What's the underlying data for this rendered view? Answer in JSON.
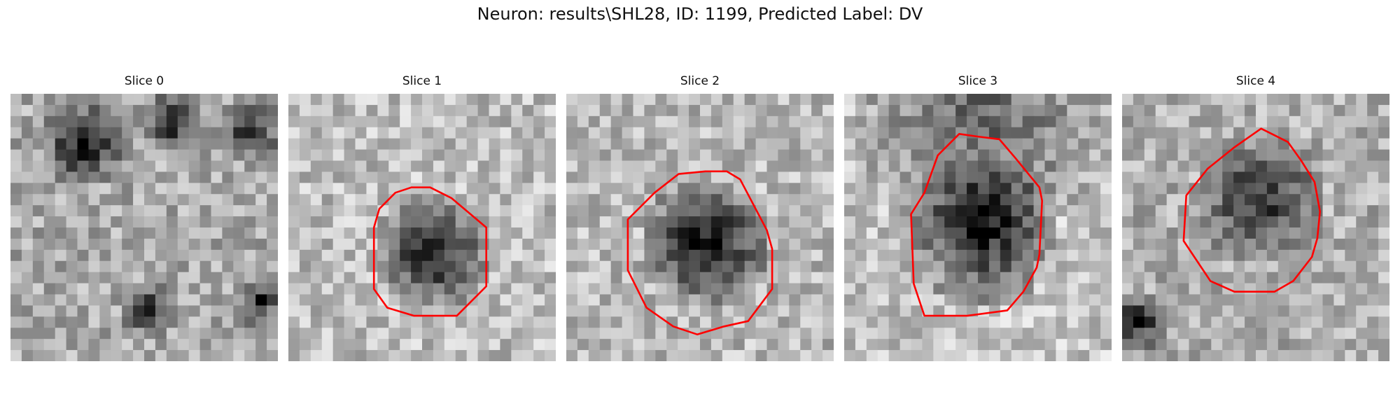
{
  "figure": {
    "title": "Neuron: results\\SHL28, ID: 1199, Predicted Label: DV"
  },
  "panels": [
    {
      "title": "Slice 0",
      "has_contour": false
    },
    {
      "title": "Slice 1",
      "has_contour": true
    },
    {
      "title": "Slice 2",
      "has_contour": true
    },
    {
      "title": "Slice 3",
      "has_contour": true
    },
    {
      "title": "Slice 4",
      "has_contour": true
    }
  ],
  "colors": {
    "contour": "#ff0000",
    "background": "#ffffff"
  }
}
